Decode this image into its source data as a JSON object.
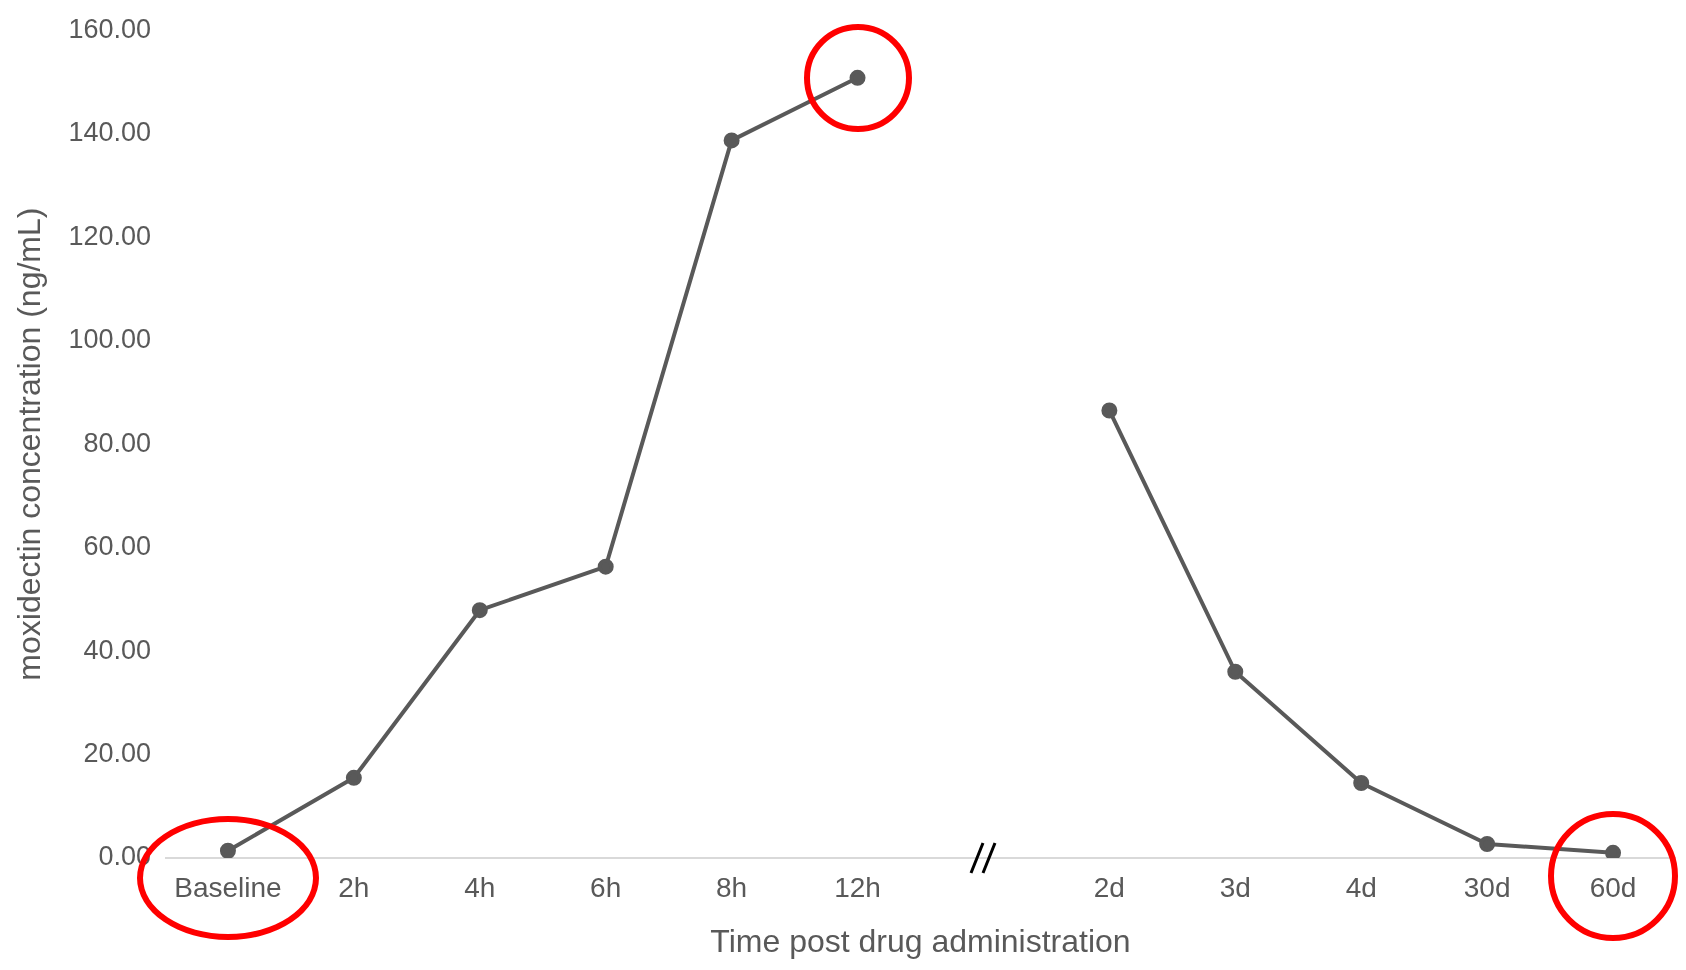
{
  "chart_data": {
    "type": "line",
    "xlabel": "Time post drug administration",
    "ylabel": "moxidectin concentration (ng/mL)",
    "categories": [
      "Baseline",
      "2h",
      "4h",
      "6h",
      "8h",
      "12h",
      null,
      "2d",
      "3d",
      "4d",
      "30d",
      "60d"
    ],
    "series": [
      {
        "color": "#595959",
        "values": [
          1.4,
          15.5,
          47.9,
          56.3,
          138.7,
          150.8,
          null,
          86.5,
          36.0,
          14.5,
          2.7,
          1.0
        ]
      }
    ],
    "ylim": [
      0,
      160
    ],
    "yticks": [
      {
        "value": 0,
        "label": "0.00"
      },
      {
        "value": 20,
        "label": "20.00"
      },
      {
        "value": 40,
        "label": "40.00"
      },
      {
        "value": 60,
        "label": "60.00"
      },
      {
        "value": 80,
        "label": "80.00"
      },
      {
        "value": 100,
        "label": "100.00"
      },
      {
        "value": 120,
        "label": "120.00"
      },
      {
        "value": 140,
        "label": "140.00"
      },
      {
        "value": 160,
        "label": "160.00"
      }
    ],
    "grid": false,
    "legend": false,
    "marker": "circle",
    "line_style": "solid"
  }
}
